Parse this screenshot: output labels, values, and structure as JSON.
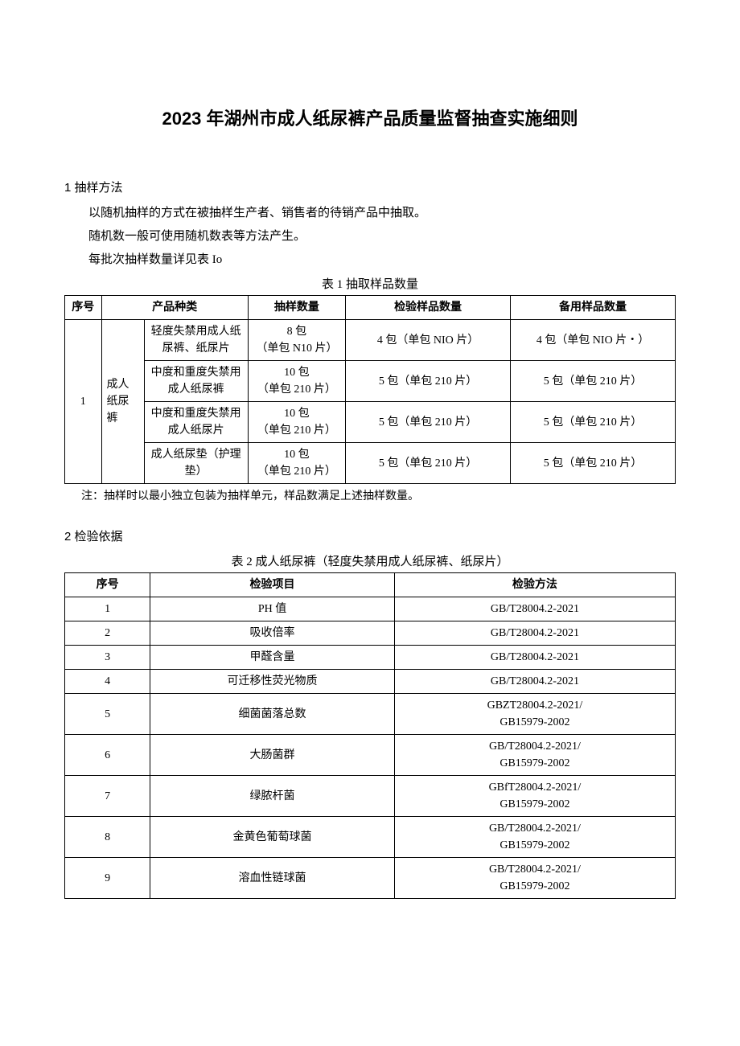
{
  "title": "2023 年湖州市成人纸尿裤产品质量监督抽查实施细则",
  "section1": {
    "heading": "1 抽样方法",
    "para1": "以随机抽样的方式在被抽样生产者、销售者的待销产品中抽取。",
    "para2": "随机数一般可使用随机数表等方法产生。",
    "para3": "每批次抽样数量详见表 Io"
  },
  "table1": {
    "caption": "表 1 抽取样品数量",
    "columns": {
      "seq": "序号",
      "category": "产品种类",
      "sample_qty": "抽样数量",
      "inspect_qty": "检验样品数量",
      "backup_qty": "备用样品数量"
    },
    "group_seq": "1",
    "group_name": "成人纸尿裤",
    "rows": [
      {
        "subtype": "轻度失禁用成人纸尿裤、纸尿片",
        "sample_qty": "8 包\n（单包 N10 片）",
        "inspect_qty": "4 包（单包 NIO 片）",
        "backup_qty": "4 包（单包 NIO 片・）"
      },
      {
        "subtype": "中度和重度失禁用成人纸尿裤",
        "sample_qty": "10 包\n（单包 210 片）",
        "inspect_qty": "5 包（单包 210 片）",
        "backup_qty": "5 包（单包 210 片）"
      },
      {
        "subtype": "中度和重度失禁用成人纸尿片",
        "sample_qty": "10 包\n（单包 210 片）",
        "inspect_qty": "5 包（单包 210 片）",
        "backup_qty": "5 包（单包 210 片）"
      },
      {
        "subtype": "成人纸尿垫（护理垫）",
        "sample_qty": "10 包\n（单包 210 片）",
        "inspect_qty": "5 包（单包 210 片）",
        "backup_qty": "5 包（单包 210 片）"
      }
    ],
    "note": "注：抽样时以最小独立包装为抽样单元，样品数满足上述抽样数量。"
  },
  "section2": {
    "heading": "2 检验依据"
  },
  "table2": {
    "caption": "表 2 成人纸尿裤（轻度失禁用成人纸尿裤、纸尿片）",
    "columns": {
      "seq": "序号",
      "item": "检验项目",
      "method": "检验方法"
    },
    "rows": [
      {
        "seq": "1",
        "item": "PH 值",
        "method": "GB/T28004.2-2021"
      },
      {
        "seq": "2",
        "item": "吸收倍率",
        "method": "GB/T28004.2-2021"
      },
      {
        "seq": "3",
        "item": "甲醛含量",
        "method": "GB/T28004.2-2021"
      },
      {
        "seq": "4",
        "item": "可迁移性荧光物质",
        "method": "GB/T28004.2-2021"
      },
      {
        "seq": "5",
        "item": "细菌菌落总数",
        "method": "GBZT28004.2-2021/\nGB15979-2002"
      },
      {
        "seq": "6",
        "item": "大肠菌群",
        "method": "GB/T28004.2-2021/\nGB15979-2002"
      },
      {
        "seq": "7",
        "item": "绿脓杆菌",
        "method": "GBfT28004.2-2021/\nGB15979-2002"
      },
      {
        "seq": "8",
        "item": "金黄色葡萄球菌",
        "method": "GB/T28004.2-2021/\nGB15979-2002"
      },
      {
        "seq": "9",
        "item": "溶血性链球菌",
        "method": "GB/T28004.2-2021/\nGB15979-2002"
      }
    ]
  },
  "colors": {
    "text": "#000000",
    "background": "#ffffff",
    "border": "#000000"
  },
  "typography": {
    "title_fontsize": 22,
    "heading_fontsize": 15,
    "body_fontsize": 15,
    "table_fontsize": 14
  }
}
